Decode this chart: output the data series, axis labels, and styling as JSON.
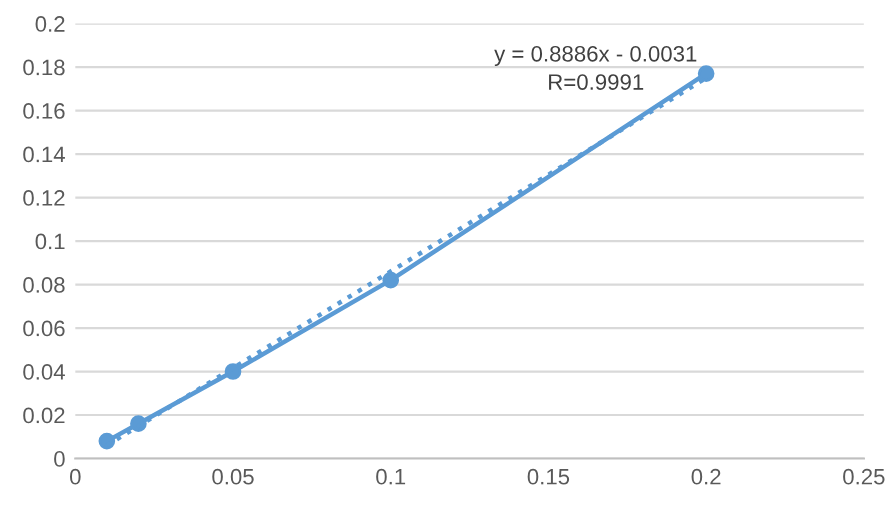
{
  "chart_data": {
    "type": "line",
    "series": [
      {
        "color": "#5b9bd5",
        "marker": "circle",
        "line_style": "solid",
        "x": [
          0.01,
          0.02,
          0.05,
          0.1,
          0.2
        ],
        "values": [
          0.008,
          0.016,
          0.04,
          0.082,
          0.177
        ]
      },
      {
        "color": "#5b9bd5",
        "marker": "none",
        "line_style": "dotted",
        "x": [
          0.01,
          0.2
        ],
        "values": [
          0.006,
          0.175
        ]
      }
    ],
    "annotations": [
      "y = 0.8886x - 0.0031",
      "R=0.9991"
    ],
    "xlim": [
      0,
      0.25
    ],
    "xticks": [
      0,
      0.05,
      0.1,
      0.15,
      0.2,
      0.25
    ],
    "ylim": [
      0,
      0.2
    ],
    "yticks": [
      0,
      0.02,
      0.04,
      0.06,
      0.08,
      0.1,
      0.12,
      0.14,
      0.16,
      0.18,
      0.2
    ],
    "grid": "y",
    "legend": false
  }
}
